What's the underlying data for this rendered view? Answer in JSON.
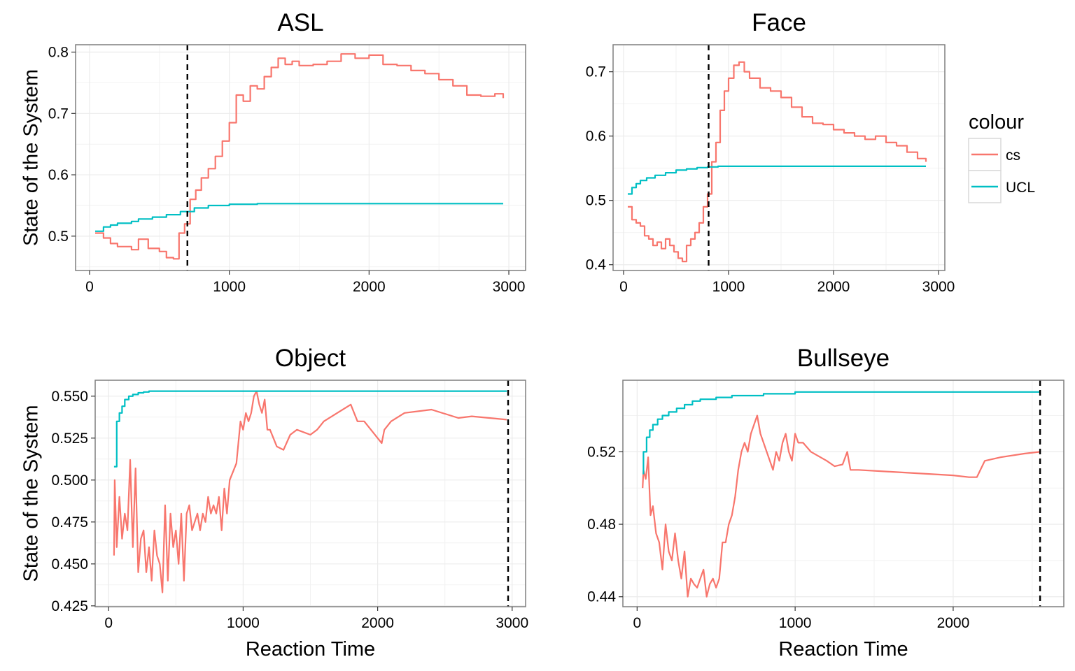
{
  "legend": {
    "title": "colour",
    "entries": [
      {
        "label": "cs",
        "color": "#F8766D"
      },
      {
        "label": "UCL",
        "color": "#00BFC4"
      }
    ],
    "placement": "right"
  },
  "chart_data": [
    {
      "type": "line",
      "title": "ASL",
      "xlabel": "",
      "ylabel": "State of the System",
      "xlim": [
        -100,
        3120
      ],
      "ylim": [
        0.444,
        0.812
      ],
      "xticks": [
        0,
        1000,
        2000,
        3000
      ],
      "yticks": [
        0.5,
        0.6,
        0.7,
        0.8
      ],
      "ytick_labels": [
        "0.5",
        "0.6",
        "0.7",
        "0.8"
      ],
      "vline_x": 700,
      "grid": true,
      "series": [
        {
          "name": "cs",
          "color": "#F8766D",
          "step": true,
          "x": [
            40,
            100,
            150,
            200,
            300,
            350,
            420,
            500,
            550,
            600,
            640,
            680,
            720,
            760,
            800,
            850,
            900,
            950,
            1000,
            1050,
            1100,
            1150,
            1200,
            1250,
            1300,
            1350,
            1400,
            1450,
            1500,
            1600,
            1700,
            1800,
            1900,
            2000,
            2100,
            2200,
            2300,
            2400,
            2500,
            2600,
            2700,
            2800,
            2900,
            2960
          ],
          "y": [
            0.505,
            0.497,
            0.488,
            0.483,
            0.478,
            0.495,
            0.48,
            0.475,
            0.465,
            0.463,
            0.505,
            0.52,
            0.56,
            0.575,
            0.595,
            0.61,
            0.63,
            0.655,
            0.685,
            0.73,
            0.72,
            0.745,
            0.74,
            0.76,
            0.775,
            0.79,
            0.78,
            0.785,
            0.778,
            0.78,
            0.785,
            0.797,
            0.79,
            0.795,
            0.78,
            0.778,
            0.77,
            0.765,
            0.755,
            0.745,
            0.73,
            0.728,
            0.732,
            0.725
          ]
        },
        {
          "name": "UCL",
          "color": "#00BFC4",
          "step": true,
          "x": [
            40,
            100,
            150,
            200,
            300,
            350,
            450,
            550,
            650,
            750,
            850,
            1000,
            1200,
            1500,
            2000,
            2500,
            2960
          ],
          "y": [
            0.508,
            0.515,
            0.518,
            0.521,
            0.524,
            0.528,
            0.531,
            0.535,
            0.54,
            0.546,
            0.55,
            0.552,
            0.553,
            0.553,
            0.553,
            0.553,
            0.553
          ]
        }
      ]
    },
    {
      "type": "line",
      "title": "Face",
      "xlabel": "",
      "ylabel": "",
      "xlim": [
        -100,
        3060
      ],
      "ylim": [
        0.391,
        0.742
      ],
      "xticks": [
        0,
        1000,
        2000,
        3000
      ],
      "yticks": [
        0.4,
        0.5,
        0.6,
        0.7
      ],
      "ytick_labels": [
        "0.4",
        "0.5",
        "0.6",
        "0.7"
      ],
      "vline_x": 810,
      "grid": true,
      "series": [
        {
          "name": "cs",
          "color": "#F8766D",
          "step": true,
          "x": [
            40,
            80,
            120,
            160,
            200,
            240,
            280,
            320,
            360,
            400,
            440,
            480,
            520,
            560,
            600,
            640,
            680,
            720,
            760,
            800,
            840,
            880,
            920,
            960,
            1000,
            1050,
            1100,
            1150,
            1200,
            1300,
            1400,
            1500,
            1600,
            1700,
            1800,
            1900,
            2000,
            2100,
            2200,
            2300,
            2400,
            2500,
            2600,
            2700,
            2800,
            2880
          ],
          "y": [
            0.49,
            0.47,
            0.465,
            0.46,
            0.445,
            0.44,
            0.43,
            0.435,
            0.425,
            0.44,
            0.43,
            0.42,
            0.41,
            0.405,
            0.43,
            0.44,
            0.45,
            0.465,
            0.49,
            0.51,
            0.56,
            0.59,
            0.64,
            0.67,
            0.69,
            0.71,
            0.715,
            0.7,
            0.69,
            0.675,
            0.67,
            0.66,
            0.645,
            0.63,
            0.62,
            0.618,
            0.61,
            0.605,
            0.6,
            0.595,
            0.6,
            0.59,
            0.585,
            0.575,
            0.565,
            0.56
          ]
        },
        {
          "name": "UCL",
          "color": "#00BFC4",
          "step": true,
          "x": [
            40,
            80,
            120,
            160,
            220,
            300,
            400,
            500,
            600,
            700,
            800,
            900,
            1000,
            1200,
            1500,
            2000,
            2500,
            2880
          ],
          "y": [
            0.51,
            0.52,
            0.526,
            0.531,
            0.535,
            0.539,
            0.543,
            0.547,
            0.549,
            0.551,
            0.552,
            0.553,
            0.553,
            0.553,
            0.553,
            0.553,
            0.553,
            0.553
          ]
        }
      ]
    },
    {
      "type": "line",
      "title": "Object",
      "xlabel": "Reaction Time",
      "ylabel": "State of the System",
      "xlim": [
        -100,
        3100
      ],
      "ylim": [
        0.4245,
        0.5595
      ],
      "xticks": [
        0,
        1000,
        2000,
        3000
      ],
      "yticks": [
        0.425,
        0.45,
        0.475,
        0.5,
        0.525,
        0.55
      ],
      "ytick_labels": [
        "0.425",
        "0.450",
        "0.475",
        "0.500",
        "0.525",
        "0.550"
      ],
      "vline_x": 2970,
      "grid": true,
      "series": [
        {
          "name": "cs",
          "color": "#F8766D",
          "step": false,
          "x": [
            40,
            45,
            60,
            80,
            100,
            120,
            140,
            160,
            180,
            200,
            220,
            240,
            260,
            280,
            300,
            320,
            340,
            360,
            380,
            400,
            420,
            440,
            460,
            480,
            500,
            520,
            540,
            560,
            580,
            600,
            620,
            640,
            660,
            680,
            700,
            720,
            740,
            760,
            780,
            800,
            820,
            840,
            860,
            880,
            900,
            950,
            980,
            1000,
            1020,
            1040,
            1060,
            1080,
            1100,
            1120,
            1140,
            1160,
            1180,
            1200,
            1250,
            1300,
            1350,
            1400,
            1500,
            1550,
            1600,
            1700,
            1800,
            1850,
            1900,
            2000,
            2030,
            2050,
            2100,
            2200,
            2400,
            2600,
            2700,
            2960
          ],
          "y": [
            0.455,
            0.5,
            0.46,
            0.49,
            0.465,
            0.48,
            0.47,
            0.512,
            0.46,
            0.507,
            0.445,
            0.465,
            0.47,
            0.445,
            0.46,
            0.44,
            0.47,
            0.455,
            0.45,
            0.433,
            0.485,
            0.44,
            0.48,
            0.46,
            0.47,
            0.45,
            0.48,
            0.44,
            0.48,
            0.485,
            0.47,
            0.475,
            0.48,
            0.47,
            0.48,
            0.475,
            0.49,
            0.48,
            0.485,
            0.48,
            0.49,
            0.47,
            0.495,
            0.48,
            0.5,
            0.51,
            0.535,
            0.53,
            0.54,
            0.535,
            0.54,
            0.55,
            0.553,
            0.545,
            0.54,
            0.548,
            0.53,
            0.53,
            0.52,
            0.518,
            0.527,
            0.53,
            0.527,
            0.53,
            0.535,
            0.54,
            0.545,
            0.535,
            0.535,
            0.525,
            0.522,
            0.53,
            0.535,
            0.54,
            0.542,
            0.537,
            0.538,
            0.536
          ]
        },
        {
          "name": "UCL",
          "color": "#00BFC4",
          "step": true,
          "x": [
            40,
            60,
            80,
            100,
            120,
            150,
            180,
            220,
            260,
            300,
            400,
            600,
            1000,
            2000,
            2960
          ],
          "y": [
            0.508,
            0.535,
            0.54,
            0.544,
            0.548,
            0.55,
            0.551,
            0.552,
            0.5525,
            0.553,
            0.553,
            0.553,
            0.553,
            0.553,
            0.553
          ]
        }
      ]
    },
    {
      "type": "line",
      "title": "Bullseye",
      "xlabel": "Reaction Time",
      "ylabel": "",
      "xlim": [
        -90,
        2700
      ],
      "ylim": [
        0.4345,
        0.5595
      ],
      "xticks": [
        0,
        1000,
        2000
      ],
      "yticks": [
        0.44,
        0.48,
        0.52
      ],
      "ytick_labels": [
        "0.44",
        "0.48",
        "0.52"
      ],
      "vline_x": 2550,
      "grid": true,
      "series": [
        {
          "name": "cs",
          "color": "#F8766D",
          "step": false,
          "x": [
            35,
            40,
            55,
            70,
            85,
            100,
            120,
            140,
            160,
            180,
            200,
            220,
            240,
            260,
            280,
            300,
            320,
            340,
            360,
            380,
            400,
            420,
            440,
            460,
            480,
            500,
            520,
            540,
            560,
            580,
            600,
            620,
            640,
            660,
            680,
            700,
            720,
            740,
            760,
            780,
            800,
            820,
            840,
            860,
            880,
            900,
            920,
            940,
            960,
            980,
            1000,
            1020,
            1050,
            1100,
            1200,
            1250,
            1300,
            1330,
            1350,
            1400,
            1600,
            1800,
            2000,
            2100,
            2150,
            2200,
            2300,
            2450,
            2550
          ],
          "y": [
            0.5,
            0.51,
            0.505,
            0.517,
            0.485,
            0.49,
            0.475,
            0.47,
            0.455,
            0.48,
            0.465,
            0.46,
            0.475,
            0.46,
            0.45,
            0.465,
            0.44,
            0.45,
            0.447,
            0.445,
            0.45,
            0.455,
            0.44,
            0.447,
            0.45,
            0.445,
            0.45,
            0.47,
            0.47,
            0.48,
            0.485,
            0.495,
            0.51,
            0.52,
            0.525,
            0.52,
            0.53,
            0.535,
            0.54,
            0.53,
            0.525,
            0.52,
            0.515,
            0.51,
            0.52,
            0.515,
            0.525,
            0.53,
            0.52,
            0.515,
            0.53,
            0.525,
            0.525,
            0.52,
            0.515,
            0.512,
            0.513,
            0.52,
            0.51,
            0.51,
            0.509,
            0.508,
            0.507,
            0.506,
            0.506,
            0.515,
            0.517,
            0.519,
            0.52
          ]
        },
        {
          "name": "UCL",
          "color": "#00BFC4",
          "step": true,
          "x": [
            35,
            40,
            60,
            80,
            100,
            130,
            160,
            200,
            250,
            300,
            350,
            400,
            500,
            600,
            800,
            1000,
            1500,
            2000,
            2550
          ],
          "y": [
            0.508,
            0.52,
            0.528,
            0.532,
            0.535,
            0.538,
            0.54,
            0.542,
            0.544,
            0.546,
            0.548,
            0.549,
            0.55,
            0.551,
            0.552,
            0.553,
            0.553,
            0.553,
            0.553
          ]
        }
      ]
    }
  ]
}
